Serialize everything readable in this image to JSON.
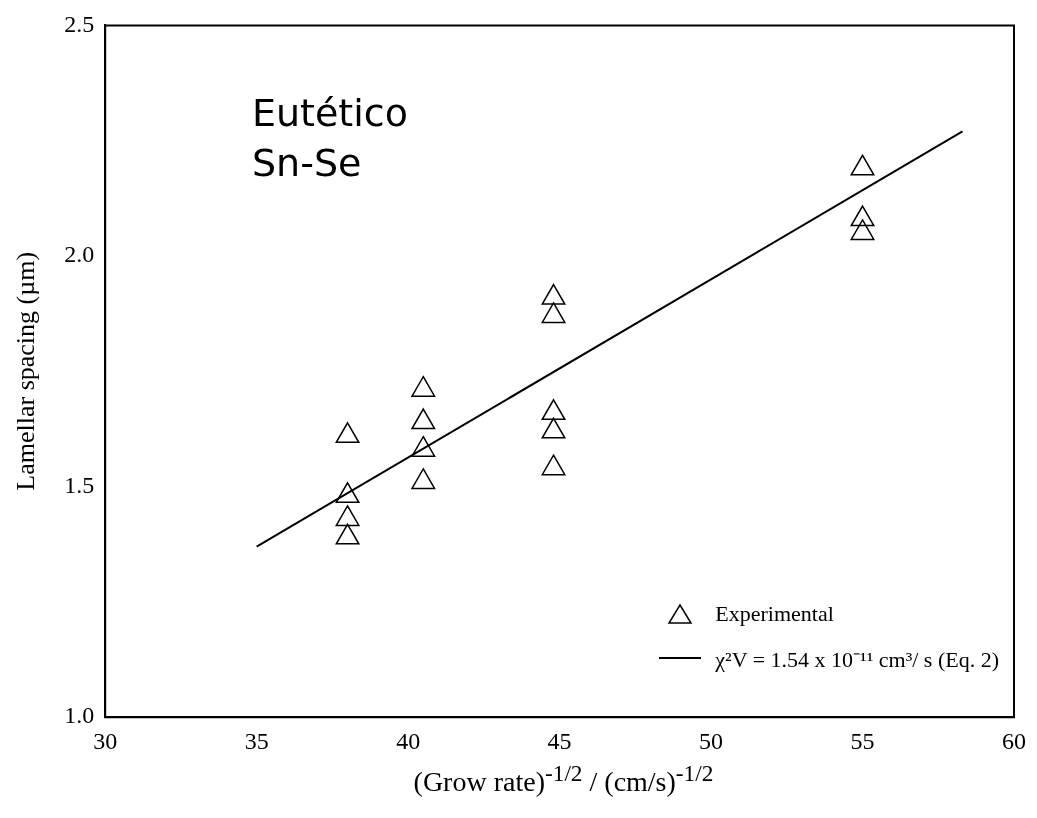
{
  "chart_data": {
    "type": "scatter",
    "xlabel": "(Grow rate)$^{-1/2}$ / (cm/s)$^{-1/2}$",
    "ylabel": "Lamellar spacing (µm)",
    "annotations": [
      "Eutético",
      "Sn-Se"
    ],
    "xlim": [
      30,
      60
    ],
    "xticks": [
      30,
      35,
      40,
      45,
      50,
      55,
      60
    ],
    "ylim": [
      1.0,
      2.5
    ],
    "yticks": [
      {
        "value": 1.0,
        "label": "1.0"
      },
      {
        "value": 1.5,
        "label": "1.5"
      },
      {
        "value": 2.0,
        "label": "2.0"
      },
      {
        "value": 2.5,
        "label": "2.5"
      }
    ],
    "grid": false,
    "legend": "bottom right",
    "series": [
      {
        "name": "Experimental",
        "type": "scatter",
        "marker": "triangle",
        "color": "#000000",
        "x": [
          38,
          38,
          38,
          38,
          40.5,
          40.5,
          40.5,
          40.5,
          44.8,
          44.8,
          44.8,
          44.8,
          44.8,
          55,
          55,
          55
        ],
        "values": [
          1.61,
          1.48,
          1.43,
          1.39,
          1.71,
          1.64,
          1.58,
          1.51,
          1.91,
          1.87,
          1.66,
          1.62,
          1.54,
          2.19,
          2.08,
          2.05
        ]
      },
      {
        "name": "χ²V = 1.54 x 10⁻¹¹ cm³/ s   (Eq. 2)",
        "type": "line",
        "color": "#000000",
        "line_style": "solid",
        "x": [
          35,
          58.3
        ],
        "values": [
          1.37,
          2.27
        ]
      }
    ]
  }
}
